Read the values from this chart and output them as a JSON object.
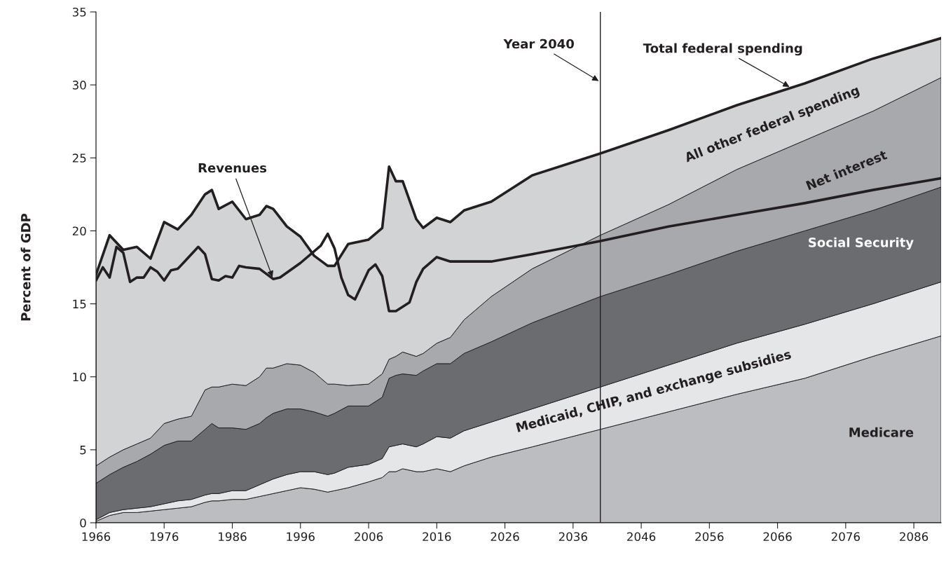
{
  "chart_data": {
    "type": "area",
    "stacked": true,
    "ylabel": "Percent of GDP",
    "x": [
      1966,
      1968,
      1970,
      1972,
      1974,
      1976,
      1978,
      1980,
      1982,
      1983,
      1984,
      1986,
      1988,
      1990,
      1991,
      1992,
      1994,
      1996,
      1998,
      2000,
      2001,
      2003,
      2006,
      2008,
      2009,
      2010,
      2011,
      2013,
      2014,
      2016,
      2018,
      2020,
      2024,
      2030,
      2040,
      2050,
      2060,
      2070,
      2080,
      2090
    ],
    "series": [
      {
        "name": "Medicare",
        "color": "#bcbdc1",
        "values": [
          0.1,
          0.5,
          0.7,
          0.7,
          0.8,
          0.9,
          1.0,
          1.1,
          1.4,
          1.5,
          1.5,
          1.6,
          1.6,
          1.8,
          1.9,
          2.0,
          2.2,
          2.4,
          2.3,
          2.1,
          2.2,
          2.4,
          2.8,
          3.1,
          3.5,
          3.5,
          3.7,
          3.5,
          3.5,
          3.7,
          3.5,
          3.9,
          4.5,
          5.2,
          6.4,
          7.6,
          8.8,
          9.9,
          11.4,
          12.8
        ]
      },
      {
        "name": "Medicaid, CHIP, and exchange subsidies",
        "color": "#e5e6e8",
        "values": [
          0.1,
          0.2,
          0.2,
          0.3,
          0.3,
          0.4,
          0.5,
          0.5,
          0.5,
          0.5,
          0.5,
          0.6,
          0.6,
          0.8,
          0.9,
          1.0,
          1.1,
          1.1,
          1.2,
          1.2,
          1.2,
          1.4,
          1.2,
          1.3,
          1.7,
          1.8,
          1.7,
          1.7,
          1.9,
          2.2,
          2.3,
          2.4,
          2.4,
          2.6,
          2.9,
          3.2,
          3.5,
          3.7,
          3.6,
          3.7
        ]
      },
      {
        "name": "Social Security",
        "color": "#6b6c70",
        "values": [
          2.5,
          2.6,
          2.9,
          3.2,
          3.6,
          4.0,
          4.1,
          4.0,
          4.5,
          4.8,
          4.5,
          4.3,
          4.2,
          4.2,
          4.4,
          4.5,
          4.5,
          4.3,
          4.1,
          4.0,
          4.1,
          4.2,
          4.0,
          4.2,
          4.7,
          4.8,
          4.8,
          4.9,
          5.0,
          5.0,
          5.1,
          5.3,
          5.5,
          5.9,
          6.2,
          6.2,
          6.3,
          6.4,
          6.4,
          6.5
        ]
      },
      {
        "name": "Net interest",
        "color": "#a8a9ad",
        "values": [
          1.2,
          1.2,
          1.2,
          1.2,
          1.1,
          1.5,
          1.5,
          1.7,
          2.7,
          2.5,
          2.8,
          3.0,
          3.0,
          3.2,
          3.4,
          3.1,
          3.1,
          3.0,
          2.7,
          2.2,
          2.0,
          1.4,
          1.5,
          1.6,
          1.3,
          1.3,
          1.5,
          1.3,
          1.2,
          1.4,
          1.8,
          2.3,
          3.1,
          3.7,
          4.2,
          4.8,
          5.6,
          6.2,
          6.8,
          7.5
        ]
      },
      {
        "name": "All other federal spending",
        "color": "#d2d3d5",
        "values": [
          13.1,
          15.2,
          13.7,
          13.5,
          12.3,
          13.8,
          13.0,
          13.8,
          13.4,
          13.5,
          12.2,
          12.5,
          11.4,
          11.1,
          11.1,
          10.9,
          9.4,
          8.8,
          8.0,
          8.1,
          8.1,
          9.7,
          9.9,
          10.0,
          13.2,
          12.0,
          11.7,
          9.4,
          8.6,
          8.6,
          7.9,
          7.5,
          6.5,
          6.4,
          5.6,
          5.1,
          4.4,
          3.9,
          3.6,
          2.7
        ]
      },
      {
        "type": "line",
        "color": "#231f20",
        "x": [
          1966,
          1967,
          1968,
          1969,
          1970,
          1971,
          1972,
          1973,
          1974,
          1975,
          1976,
          1977,
          1978,
          1979,
          1981,
          1982,
          1983,
          1984,
          1985,
          1986,
          1987,
          1988,
          1990,
          1992,
          1993,
          1996,
          1999,
          2000,
          2001,
          2002,
          2003,
          2004,
          2005,
          2006,
          2007,
          2008,
          2009,
          2010,
          2012,
          2013,
          2014,
          2016,
          2018,
          2024,
          2030,
          2040,
          2050,
          2060,
          2070,
          2080,
          2090
        ],
        "values": [
          16.6,
          17.5,
          16.8,
          18.9,
          18.5,
          16.5,
          16.8,
          16.8,
          17.5,
          17.2,
          16.6,
          17.3,
          17.4,
          17.9,
          18.9,
          18.4,
          16.7,
          16.6,
          16.9,
          16.8,
          17.6,
          17.5,
          17.4,
          16.7,
          16.8,
          17.8,
          19.0,
          19.8,
          18.8,
          16.8,
          15.6,
          15.3,
          16.3,
          17.3,
          17.7,
          16.9,
          14.5,
          14.5,
          15.1,
          16.5,
          17.4,
          18.2,
          17.9,
          17.9,
          18.4,
          19.3,
          20.3,
          21.1,
          21.9,
          22.8,
          23.6
        ]
      }
    ],
    "xlim": [
      1966,
      2090
    ],
    "xticks": [
      1966,
      1976,
      1986,
      1996,
      2006,
      2016,
      2026,
      2036,
      2046,
      2056,
      2066,
      2076,
      2086
    ],
    "ylim": [
      0,
      35
    ],
    "yticks": [
      0,
      5,
      10,
      15,
      20,
      25,
      30,
      35
    ],
    "grid": false,
    "ref_lines": [
      {
        "axis": "x",
        "value": 2040,
        "label": "Year 2040",
        "color": "#231f20"
      }
    ],
    "annotations": [
      {
        "text": "Revenues",
        "x": 1992,
        "y": 16.7
      },
      {
        "text": "Total federal spending",
        "x": 2068,
        "y": 29.8
      }
    ]
  }
}
